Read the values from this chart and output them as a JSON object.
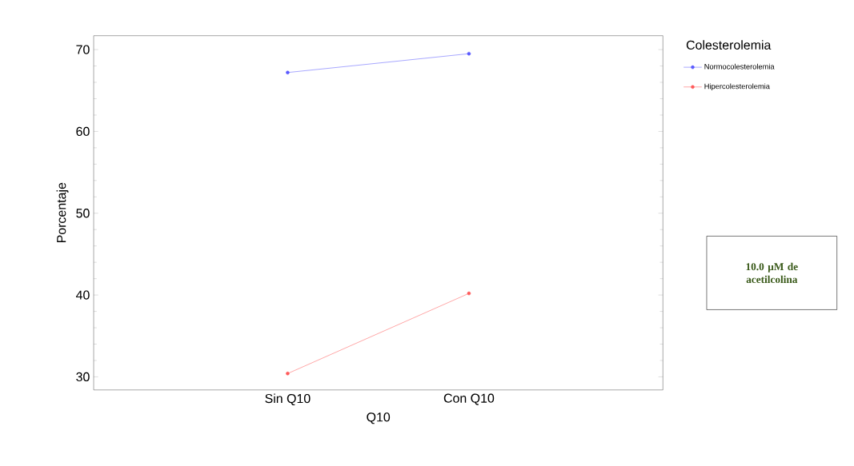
{
  "chart_data": {
    "type": "line",
    "xlabel": "Q10",
    "ylabel": "Porcentaje",
    "legend_title": "Colesterolemia",
    "categories": [
      "Sin Q10",
      "Con Q10"
    ],
    "series": [
      {
        "name": "Normocolesterolemia",
        "color": "#5a5aff",
        "values": [
          67.2,
          69.5
        ]
      },
      {
        "name": "Hipercolesterolemia",
        "color": "#ff5a5a",
        "values": [
          30.4,
          40.2
        ]
      }
    ],
    "ylim": [
      28.4,
      71.7
    ],
    "yticks": [
      30,
      40,
      50,
      60,
      70
    ],
    "marker": "circle",
    "legend": "right",
    "annotations": [
      "10.0 µM de acetilcolina"
    ]
  }
}
